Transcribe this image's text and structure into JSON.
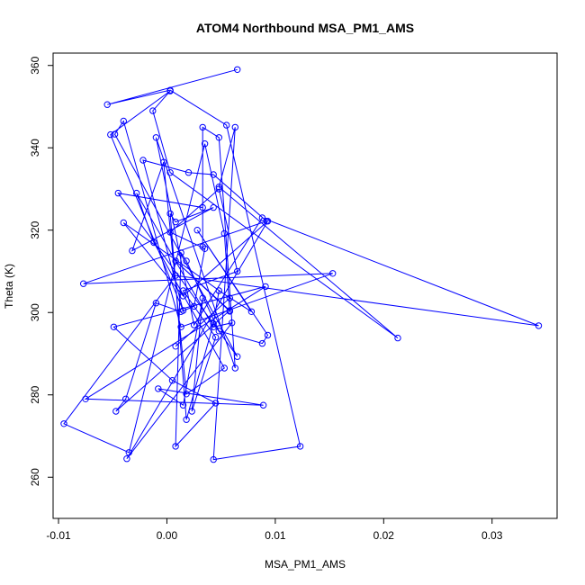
{
  "chart_data": {
    "type": "scatter",
    "title": "ATOM4 Northbound MSA_PM1_AMS",
    "xlabel": "MSA_PM1_AMS",
    "ylabel": "Theta (K)",
    "xlim": [
      -0.0105,
      0.036
    ],
    "ylim": [
      250,
      363
    ],
    "x_ticks": [
      -0.01,
      0.0,
      0.01,
      0.02,
      0.03
    ],
    "x_tick_labels": [
      "-0.01",
      "0.00",
      "0.01",
      "0.02",
      "0.03"
    ],
    "y_ticks": [
      260,
      280,
      300,
      320,
      340,
      360
    ],
    "y_tick_labels": [
      "260",
      "280",
      "300",
      "320",
      "340",
      "360"
    ],
    "grid": false,
    "style": "points connected by lines, open circle markers",
    "series": [
      {
        "color": "#0000ff",
        "x": [
          0.0065,
          -0.0055,
          0.0003,
          0.0055,
          0.0123,
          0.0043,
          0.0063,
          0.0048,
          0.0213,
          0.0003,
          -0.0013,
          0.0003,
          -0.0052,
          0.0015,
          -0.0022,
          0.002,
          0.0043,
          0.0092,
          -0.0077,
          0.0153,
          0.0013,
          -0.004,
          -0.0048,
          0.0065,
          -0.0045,
          0.0033,
          0.0033,
          0.0033,
          0.0048,
          0.0063,
          -0.001,
          0.0025,
          0.0088,
          0.0343,
          0.0008,
          -0.0095,
          -0.0035,
          0.0035,
          0.0053,
          0.0058,
          0.0008,
          0.0058,
          -0.0047,
          -0.0038,
          -0.001,
          0.0013,
          0.0025,
          0.0035,
          0.0003,
          0.0048,
          0.0065,
          0.0015,
          0.0045,
          0.0023,
          0.0033,
          0.0015,
          -0.0008,
          0.0089,
          -0.0075,
          0.0091,
          -0.0049,
          0.0005,
          0.0045,
          0.0008,
          0.0013,
          0.0018,
          0.0048,
          0.0088,
          0.0093,
          0.0028,
          0.0078,
          0.0048,
          0.0043,
          0.0018,
          0.0003,
          0.0008,
          0.0043,
          -0.0032,
          -0.0003,
          0.0018,
          0.0053,
          -0.0012,
          -0.0028,
          0.0043,
          0.006,
          -0.0037,
          0.0093,
          0.0015,
          -0.004,
          0.0058,
          0.0008
        ],
        "y": [
          359,
          350.5,
          354,
          345.5,
          267.5,
          264.3,
          345,
          330.5,
          293.8,
          334,
          349,
          353.8,
          343.2,
          300.5,
          337,
          334,
          333.5,
          322.2,
          307,
          309.5,
          296.5,
          346.5,
          343.3,
          289.3,
          329,
          325.5,
          316,
          345,
          342.5,
          286.5,
          342.5,
          297,
          323,
          296.8,
          309,
          273,
          266,
          341,
          319.2,
          300.3,
          312.5,
          300.5,
          276,
          279,
          302.3,
          300.2,
          301.5,
          315.5,
          319.5,
          330,
          310,
          305.3,
          294,
          276,
          303.5,
          277.5,
          281.5,
          277.5,
          279,
          306.3,
          296.5,
          283.5,
          278,
          267.5,
          314.5,
          312.5,
          295.5,
          292.5,
          294.5,
          320,
          300.2,
          305.3,
          297.3,
          274,
          324,
          322,
          325.5,
          315,
          336.5,
          280.2,
          286.5,
          317,
          329,
          296.5,
          297.5,
          264.5,
          322.2,
          304,
          321.8,
          303.5,
          291.8
        ]
      }
    ]
  }
}
